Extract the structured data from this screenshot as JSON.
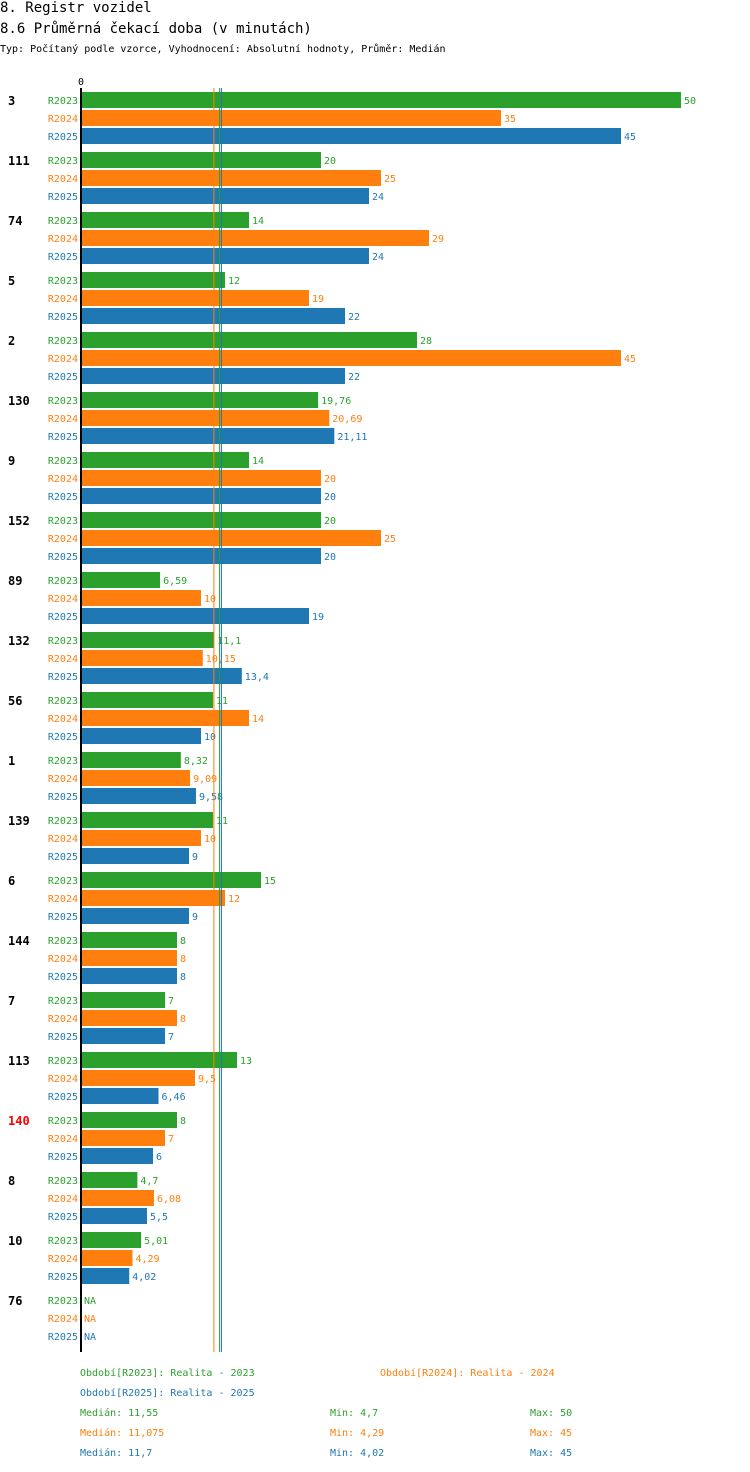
{
  "header": {
    "title": "8. Registr vozidel",
    "subtitle": "8.6 Průměrná čekací doba (v minutách)",
    "type_line": "Typ: Počítaný podle vzorce, Vyhodnocení: Absolutní hodnoty, Průměr: Medián"
  },
  "colors": {
    "R2023": "#2ca02c",
    "R2024": "#ff7f0e",
    "R2025": "#1f77b4",
    "highlight": "#ff0000",
    "axis": "#000000"
  },
  "chart_data": {
    "type": "bar",
    "orientation": "horizontal",
    "title": "8.6 Průměrná čekací doba (v minutách)",
    "xlim": [
      0,
      50
    ],
    "tick_labels": [
      "0"
    ],
    "series_names": [
      "R2023",
      "R2024",
      "R2025"
    ],
    "categories": [
      {
        "label": "3",
        "highlight": false,
        "values": [
          50,
          35,
          45
        ],
        "labels": [
          "50",
          "35",
          "45"
        ]
      },
      {
        "label": "111",
        "highlight": false,
        "values": [
          20,
          25,
          24
        ],
        "labels": [
          "20",
          "25",
          "24"
        ]
      },
      {
        "label": "74",
        "highlight": false,
        "values": [
          14,
          29,
          24
        ],
        "labels": [
          "14",
          "29",
          "24"
        ]
      },
      {
        "label": "5",
        "highlight": false,
        "values": [
          12,
          19,
          22
        ],
        "labels": [
          "12",
          "19",
          "22"
        ]
      },
      {
        "label": "2",
        "highlight": false,
        "values": [
          28,
          45,
          22
        ],
        "labels": [
          "28",
          "45",
          "22"
        ]
      },
      {
        "label": "130",
        "highlight": false,
        "values": [
          19.76,
          20.69,
          21.11
        ],
        "labels": [
          "19,76",
          "20,69",
          "21,11"
        ]
      },
      {
        "label": "9",
        "highlight": false,
        "values": [
          14,
          20,
          20
        ],
        "labels": [
          "14",
          "20",
          "20"
        ]
      },
      {
        "label": "152",
        "highlight": false,
        "values": [
          20,
          25,
          20
        ],
        "labels": [
          "20",
          "25",
          "20"
        ]
      },
      {
        "label": "89",
        "highlight": false,
        "values": [
          6.59,
          10,
          19
        ],
        "labels": [
          "6,59",
          "10",
          "19"
        ]
      },
      {
        "label": "132",
        "highlight": false,
        "values": [
          11.1,
          10.15,
          13.4
        ],
        "labels": [
          "11,1",
          "10,15",
          "13,4"
        ]
      },
      {
        "label": "56",
        "highlight": false,
        "values": [
          11,
          14,
          10
        ],
        "labels": [
          "11",
          "14",
          "10"
        ]
      },
      {
        "label": "1",
        "highlight": false,
        "values": [
          8.32,
          9.09,
          9.58
        ],
        "labels": [
          "8,32",
          "9,09",
          "9,58"
        ]
      },
      {
        "label": "139",
        "highlight": false,
        "values": [
          11,
          10,
          9
        ],
        "labels": [
          "11",
          "10",
          "9"
        ]
      },
      {
        "label": "6",
        "highlight": false,
        "values": [
          15,
          12,
          9
        ],
        "labels": [
          "15",
          "12",
          "9"
        ]
      },
      {
        "label": "144",
        "highlight": false,
        "values": [
          8,
          8,
          8
        ],
        "labels": [
          "8",
          "8",
          "8"
        ]
      },
      {
        "label": "7",
        "highlight": false,
        "values": [
          7,
          8,
          7
        ],
        "labels": [
          "7",
          "8",
          "7"
        ]
      },
      {
        "label": "113",
        "highlight": false,
        "values": [
          13,
          9.5,
          6.46
        ],
        "labels": [
          "13",
          "9,5",
          "6,46"
        ]
      },
      {
        "label": "140",
        "highlight": true,
        "values": [
          8,
          7,
          6
        ],
        "labels": [
          "8",
          "7",
          "6"
        ]
      },
      {
        "label": "8",
        "highlight": false,
        "values": [
          4.7,
          6.08,
          5.5
        ],
        "labels": [
          "4,7",
          "6,08",
          "5,5"
        ]
      },
      {
        "label": "10",
        "highlight": false,
        "values": [
          5.01,
          4.29,
          4.02
        ],
        "labels": [
          "5,01",
          "4,29",
          "4,02"
        ]
      },
      {
        "label": "76",
        "highlight": false,
        "values": [
          null,
          null,
          null
        ],
        "labels": [
          "NA",
          "NA",
          "NA"
        ]
      }
    ],
    "median_lines": [
      11.55,
      11.075,
      11.7
    ]
  },
  "legend": {
    "r2023": "Období[R2023]: Realita - 2023",
    "r2024": "Období[R2024]: Realita - 2024",
    "r2025": "Období[R2025]: Realita - 2025"
  },
  "stats": {
    "r2023": {
      "median": "Medián: 11,55",
      "min": "Min: 4,7",
      "max": "Max: 50"
    },
    "r2024": {
      "median": "Medián: 11,075",
      "min": "Min: 4,29",
      "max": "Max: 45"
    },
    "r2025": {
      "median": "Medián: 11,7",
      "min": "Min: 4,02",
      "max": "Max: 45"
    }
  }
}
